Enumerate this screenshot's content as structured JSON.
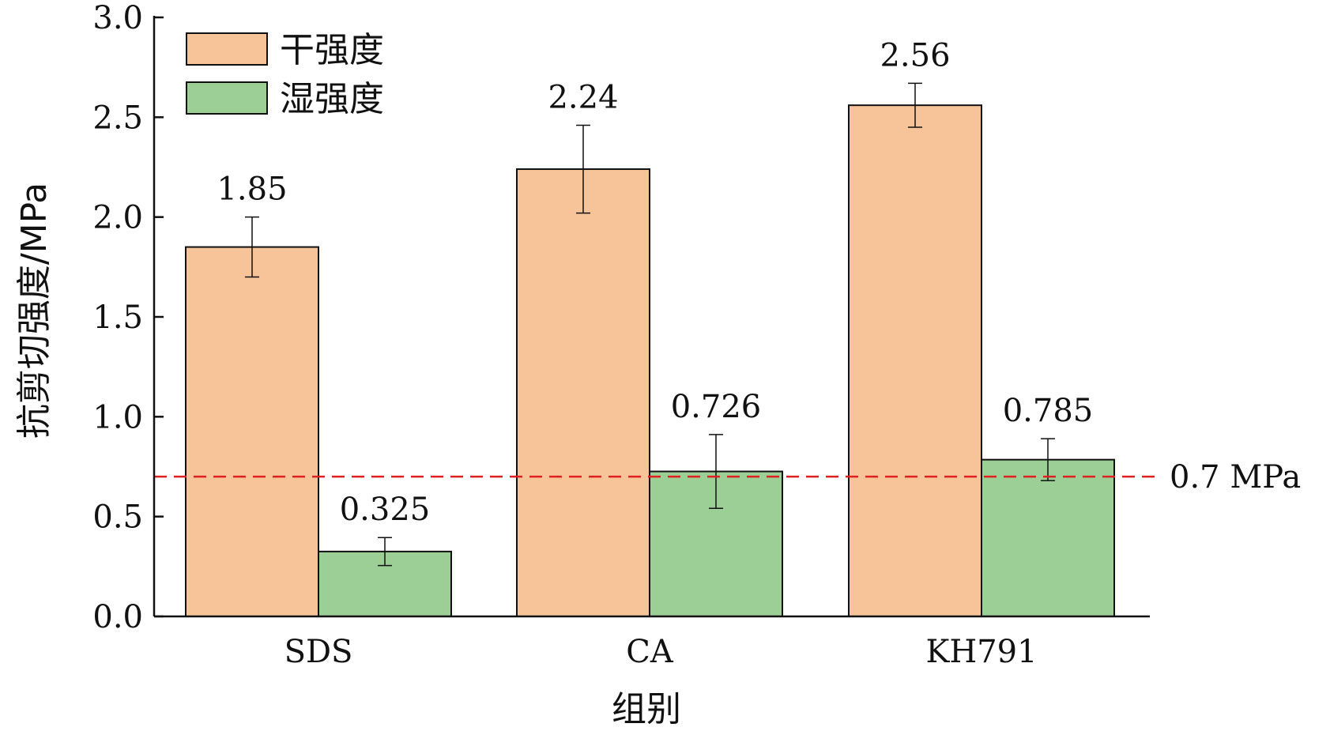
{
  "chart_data": {
    "type": "bar",
    "title": "",
    "xlabel": "组别",
    "ylabel": "抗剪切强度/MPa",
    "categories": [
      "SDS",
      "CA",
      "KH791"
    ],
    "ylim": [
      0,
      3.0
    ],
    "yticks": [
      "0.0",
      "0.5",
      "1.0",
      "1.5",
      "2.0",
      "2.5",
      "3.0"
    ],
    "ytick_values": [
      0,
      0.5,
      1.0,
      1.5,
      2.0,
      2.5,
      3.0
    ],
    "legend_position": "top-left",
    "grid": false,
    "series": [
      {
        "name": "干强度",
        "color": "#f6c498",
        "values": [
          1.85,
          2.24,
          2.56
        ],
        "errors": [
          0.15,
          0.22,
          0.11
        ],
        "labels": [
          "1.85",
          "2.24",
          "2.56"
        ]
      },
      {
        "name": "湿强度",
        "color": "#9bcf95",
        "values": [
          0.325,
          0.726,
          0.785
        ],
        "errors": [
          0.07,
          0.185,
          0.105
        ],
        "labels": [
          "0.325",
          "0.726",
          "0.785"
        ]
      }
    ],
    "reference_line": {
      "value": 0.7,
      "label": "0.7 MPa",
      "color": "#e02020",
      "style": "dashed"
    }
  }
}
